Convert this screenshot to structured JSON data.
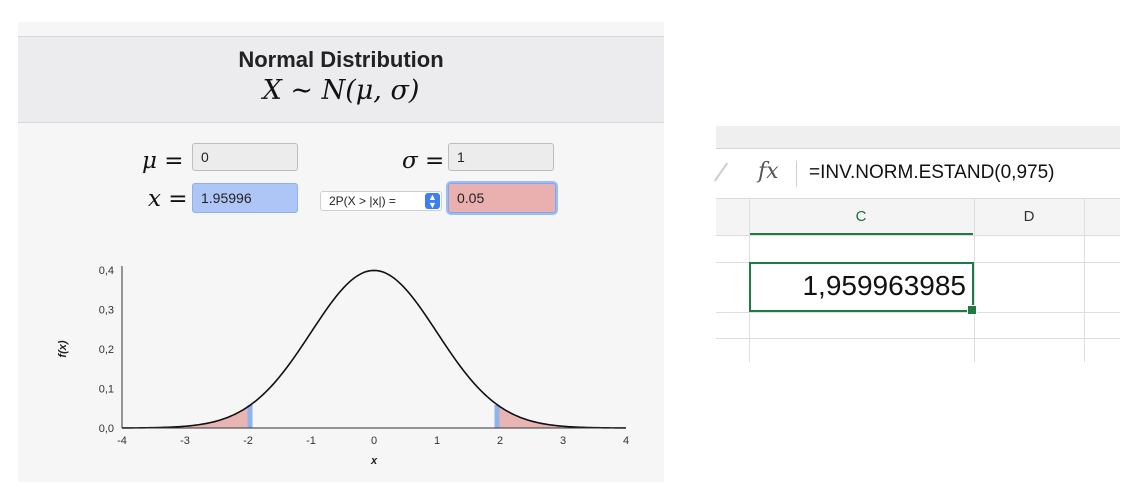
{
  "calculator": {
    "title": "Normal Distribution",
    "formula": "X ∼ N(μ, σ)",
    "mu_label": "μ =",
    "mu_value": "0",
    "sigma_label": "σ =",
    "sigma_value": "1",
    "x_label": "x =",
    "x_value": "1.95996",
    "prob_select": "2P(X > |x|) =",
    "prob_value": "0.05",
    "plot": {
      "ylabel": "f(x)",
      "xlabel": "x",
      "x_ticks": [
        "-4",
        "-3",
        "-2",
        "-1",
        "0",
        "1",
        "2",
        "3",
        "4"
      ],
      "y_ticks": [
        "0,0",
        "0,1",
        "0,2",
        "0,3",
        "0,4"
      ]
    }
  },
  "chart_data": {
    "type": "area",
    "distribution": "normal",
    "mu": 0,
    "sigma": 1,
    "xlim": [
      -4,
      4
    ],
    "ylim": [
      0,
      0.4
    ],
    "shaded_tails": [
      [
        -4,
        -1.95996
      ],
      [
        1.95996,
        4
      ]
    ],
    "critical_values": [
      -1.95996,
      1.95996
    ],
    "xlabel": "x",
    "ylabel": "f(x)",
    "grid": false
  },
  "spreadsheet": {
    "fx_label": "fx",
    "formula": "=INV.NORM.ESTAND(0,975)",
    "columns": [
      "C",
      "D"
    ],
    "cell_value": "1,959963985"
  },
  "colors": {
    "tail_fill": "#e9b4b4",
    "marker": "#8fb4ec",
    "excel_green": "#1f7a45"
  }
}
